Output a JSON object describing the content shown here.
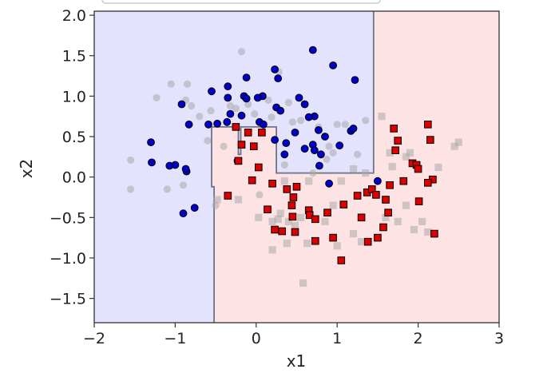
{
  "chart_data": {
    "type": "scatter",
    "title": "",
    "xlabel": "x1",
    "ylabel": "x2",
    "xlim": [
      -2,
      3
    ],
    "ylim": [
      -1.8,
      2.05
    ],
    "xticks": [
      -2,
      -1,
      0,
      1,
      2,
      3
    ],
    "yticks": [
      -1.5,
      -1.0,
      -0.5,
      0.0,
      0.5,
      1.0,
      1.5,
      2.0
    ],
    "xtick_labels": [
      "−2",
      "−1",
      "0",
      "1",
      "2",
      "3"
    ],
    "ytick_labels": [
      "−1.5",
      "−1.0",
      "−0.5",
      "0.0",
      "0.5",
      "1.0",
      "1.5",
      "2.0"
    ],
    "legend": "none",
    "grid": false,
    "region_colors": {
      "class_0": "#e3e3fd",
      "class_1": "#fde3e3",
      "boundary": "#6c7487"
    },
    "decision_boundary": [
      [
        -0.52,
        -1.8
      ],
      [
        -0.52,
        -0.12
      ],
      [
        -0.55,
        -0.12
      ],
      [
        -0.55,
        0.05
      ],
      [
        -0.55,
        0.62
      ],
      [
        -0.22,
        0.62
      ],
      [
        -0.22,
        0.28
      ],
      [
        -0.19,
        0.28
      ],
      [
        -0.19,
        0.62
      ],
      [
        0.25,
        0.62
      ],
      [
        0.25,
        0.05
      ],
      [
        1.45,
        0.05
      ],
      [
        1.45,
        2.05
      ]
    ],
    "series": [
      {
        "marker": "circle",
        "color": "#0000cc",
        "points": [
          [
            0.7,
            1.57
          ],
          [
            0.95,
            1.38
          ],
          [
            1.22,
            1.2
          ],
          [
            0.23,
            1.33
          ],
          [
            0.27,
            1.22
          ],
          [
            -0.12,
            1.23
          ],
          [
            -0.35,
            1.12
          ],
          [
            -0.55,
            1.06
          ],
          [
            -0.15,
            1.0
          ],
          [
            0.08,
            1.0
          ],
          [
            0.02,
            0.98
          ],
          [
            0.53,
            0.98
          ],
          [
            0.6,
            0.9
          ],
          [
            -0.35,
            0.98
          ],
          [
            -0.12,
            0.97
          ],
          [
            0.25,
            0.86
          ],
          [
            0.3,
            0.82
          ],
          [
            -0.92,
            0.9
          ],
          [
            -0.83,
            0.65
          ],
          [
            -0.59,
            0.65
          ],
          [
            -0.48,
            0.66
          ],
          [
            -0.32,
            0.78
          ],
          [
            -0.18,
            0.76
          ],
          [
            -0.36,
            0.68
          ],
          [
            0.04,
            0.68
          ],
          [
            0.09,
            0.65
          ],
          [
            0.48,
            0.55
          ],
          [
            0.72,
            0.75
          ],
          [
            0.65,
            0.74
          ],
          [
            0.77,
            0.58
          ],
          [
            0.6,
            0.35
          ],
          [
            0.7,
            0.4
          ],
          [
            0.72,
            0.33
          ],
          [
            0.85,
            0.5
          ],
          [
            1.17,
            0.57
          ],
          [
            1.2,
            0.6
          ],
          [
            1.03,
            0.39
          ],
          [
            0.37,
            0.42
          ],
          [
            0.23,
            0.46
          ],
          [
            0.35,
            0.28
          ],
          [
            -1.3,
            0.43
          ],
          [
            -1.29,
            0.18
          ],
          [
            -1.0,
            0.15
          ],
          [
            -1.07,
            0.14
          ],
          [
            -0.86,
            0.07
          ],
          [
            -0.87,
            0.1
          ],
          [
            -0.23,
            0.2
          ],
          [
            -0.76,
            -0.38
          ],
          [
            -0.9,
            -0.45
          ],
          [
            0.78,
            0.14
          ],
          [
            0.9,
            -0.08
          ],
          [
            1.5,
            -0.05
          ],
          [
            0.8,
            0.28
          ]
        ]
      },
      {
        "marker": "square",
        "color": "#dd0000",
        "points": [
          [
            -0.25,
            0.62
          ],
          [
            -0.22,
            0.2
          ],
          [
            -0.18,
            0.4
          ],
          [
            -0.35,
            -0.23
          ],
          [
            -0.1,
            0.55
          ],
          [
            0.07,
            0.55
          ],
          [
            -0.03,
            0.38
          ],
          [
            -0.05,
            -0.04
          ],
          [
            0.03,
            0.12
          ],
          [
            0.2,
            -0.08
          ],
          [
            0.38,
            -0.15
          ],
          [
            0.5,
            -0.12
          ],
          [
            0.46,
            -0.25
          ],
          [
            0.44,
            -0.35
          ],
          [
            0.14,
            -0.4
          ],
          [
            0.23,
            -0.65
          ],
          [
            0.32,
            -0.67
          ],
          [
            0.45,
            -0.49
          ],
          [
            0.48,
            -0.68
          ],
          [
            0.65,
            -0.41
          ],
          [
            0.66,
            -0.47
          ],
          [
            0.73,
            -0.52
          ],
          [
            0.73,
            -0.79
          ],
          [
            0.88,
            -0.44
          ],
          [
            0.95,
            -0.75
          ],
          [
            1.05,
            -1.03
          ],
          [
            1.08,
            -0.34
          ],
          [
            1.25,
            -0.23
          ],
          [
            1.3,
            -0.5
          ],
          [
            1.37,
            -0.19
          ],
          [
            1.38,
            -0.8
          ],
          [
            1.43,
            -0.15
          ],
          [
            1.5,
            -0.75
          ],
          [
            1.57,
            -0.62
          ],
          [
            1.6,
            -0.28
          ],
          [
            1.65,
            -0.1
          ],
          [
            1.7,
            0.6
          ],
          [
            1.72,
            0.33
          ],
          [
            1.75,
            0.45
          ],
          [
            1.82,
            -0.05
          ],
          [
            1.93,
            0.17
          ],
          [
            1.98,
            0.15
          ],
          [
            2.0,
            0.1
          ],
          [
            2.01,
            -0.3
          ],
          [
            2.12,
            0.65
          ],
          [
            2.15,
            0.46
          ],
          [
            2.18,
            -0.03
          ],
          [
            2.12,
            -0.07
          ],
          [
            2.2,
            -0.7
          ],
          [
            1.63,
            -0.44
          ],
          [
            1.48,
            -0.22
          ]
        ]
      },
      {
        "marker": "circle",
        "color": "#aaaaaa",
        "points": [
          [
            -0.18,
            1.55
          ],
          [
            0.28,
            1.3
          ],
          [
            -1.05,
            1.15
          ],
          [
            -0.85,
            1.15
          ],
          [
            -1.23,
            0.98
          ],
          [
            -0.87,
            0.95
          ],
          [
            -0.8,
            0.88
          ],
          [
            -0.56,
            0.82
          ],
          [
            -0.32,
            0.88
          ],
          [
            -0.25,
            0.85
          ],
          [
            -0.1,
            0.9
          ],
          [
            0.15,
            0.95
          ],
          [
            0.4,
            0.92
          ],
          [
            -0.7,
            0.75
          ],
          [
            -0.02,
            0.78
          ],
          [
            0.19,
            0.74
          ],
          [
            0.45,
            0.68
          ],
          [
            0.55,
            0.7
          ],
          [
            0.77,
            0.62
          ],
          [
            1.0,
            0.65
          ],
          [
            1.1,
            0.65
          ],
          [
            1.35,
            0.7
          ],
          [
            -0.6,
            0.45
          ],
          [
            -0.4,
            0.38
          ],
          [
            0.9,
            0.38
          ],
          [
            0.95,
            0.3
          ],
          [
            1.25,
            0.28
          ],
          [
            -1.55,
            0.21
          ],
          [
            -1.1,
            -0.15
          ],
          [
            -0.9,
            -0.1
          ],
          [
            -1.55,
            -0.15
          ],
          [
            -0.5,
            -0.35
          ],
          [
            0.04,
            -0.22
          ],
          [
            0.35,
            0.15
          ],
          [
            0.87,
            0.22
          ],
          [
            0.7,
            0.05
          ]
        ]
      },
      {
        "marker": "square",
        "color": "#aaaaaa",
        "points": [
          [
            1.55,
            0.75
          ],
          [
            1.65,
            0.3
          ],
          [
            1.85,
            0.25
          ],
          [
            1.9,
            0.3
          ],
          [
            1.68,
            0.13
          ],
          [
            2.45,
            0.38
          ],
          [
            2.5,
            0.43
          ],
          [
            2.25,
            0.12
          ],
          [
            1.35,
            0.05
          ],
          [
            1.2,
            0.1
          ],
          [
            1.05,
            -0.05
          ],
          [
            0.65,
            -0.05
          ],
          [
            0.35,
            -0.05
          ],
          [
            0.95,
            -0.35
          ],
          [
            1.0,
            -0.85
          ],
          [
            1.2,
            -0.7
          ],
          [
            1.3,
            -0.8
          ],
          [
            -0.48,
            -0.28
          ],
          [
            -0.22,
            -0.28
          ],
          [
            0.03,
            -0.5
          ],
          [
            0.3,
            -0.45
          ],
          [
            0.2,
            -0.55
          ],
          [
            0.27,
            -0.52
          ],
          [
            0.4,
            -0.55
          ],
          [
            0.48,
            -0.6
          ],
          [
            0.55,
            -0.5
          ],
          [
            0.85,
            -0.55
          ],
          [
            0.63,
            -0.82
          ],
          [
            0.38,
            -0.82
          ],
          [
            1.6,
            -0.5
          ],
          [
            1.75,
            -0.55
          ],
          [
            1.85,
            -0.35
          ],
          [
            2.05,
            -0.55
          ],
          [
            2.12,
            -0.68
          ],
          [
            1.95,
            -0.65
          ],
          [
            0.58,
            -1.31
          ],
          [
            0.2,
            -0.9
          ]
        ]
      }
    ]
  }
}
